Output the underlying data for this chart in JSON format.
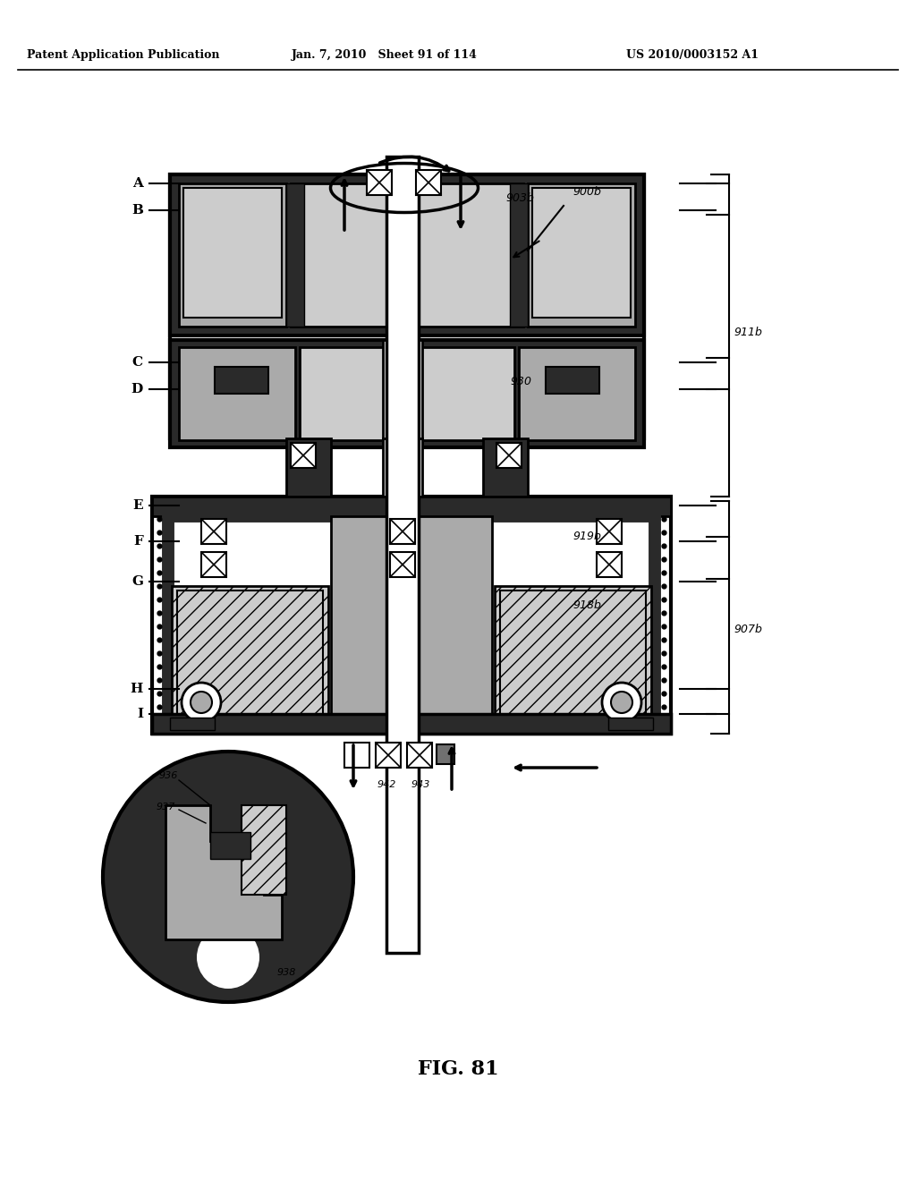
{
  "title_left": "Patent Application Publication",
  "title_center": "Jan. 7, 2010   Sheet 91 of 114",
  "title_right": "US 2010/0003152 A1",
  "fig_label": "FIG. 81",
  "bg_color": "#ffffff",
  "dark_gray": "#2a2a2a",
  "med_gray": "#707070",
  "light_gray": "#aaaaaa",
  "very_light": "#cccccc",
  "black": "#000000",
  "white": "#ffffff"
}
